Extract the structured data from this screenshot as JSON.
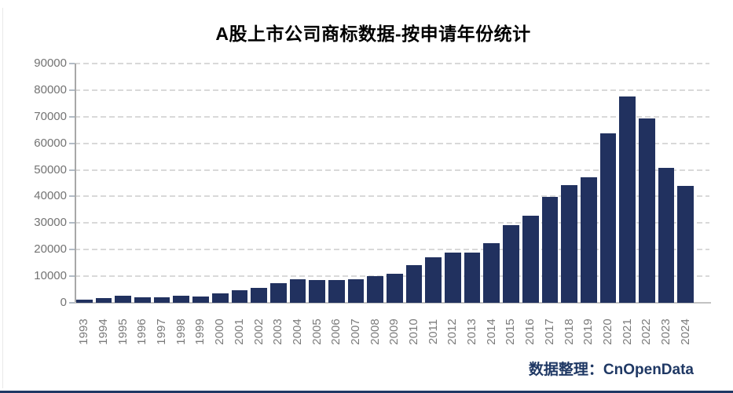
{
  "title": "A股上市公司商标数据-按申请年份统计",
  "footer": {
    "credit": "数据整理：CnOpenData"
  },
  "colors": {
    "bar": "#21315f",
    "gridline": "#d9d9d9",
    "axis": "#a8a8a8",
    "tick_label": "#737373",
    "title": "#000000",
    "footer_accent": "#1f3864"
  },
  "chart_data": {
    "type": "bar",
    "title": "A股上市公司商标数据-按申请年份统计",
    "categories": [
      "1993",
      "1994",
      "1995",
      "1996",
      "1997",
      "1998",
      "1999",
      "2000",
      "2001",
      "2002",
      "2003",
      "2004",
      "2005",
      "2006",
      "2007",
      "2008",
      "2009",
      "2010",
      "2011",
      "2012",
      "2013",
      "2014",
      "2015",
      "2016",
      "2017",
      "2018",
      "2019",
      "2020",
      "2021",
      "2022",
      "2023",
      "2024"
    ],
    "values": [
      1100,
      1900,
      2600,
      2100,
      2000,
      2800,
      2400,
      3600,
      4800,
      5600,
      7500,
      8800,
      8500,
      8600,
      9000,
      10100,
      10900,
      14300,
      17200,
      19000,
      19000,
      22300,
      29200,
      32800,
      39700,
      44400,
      47200,
      63700,
      77500,
      69300,
      50900,
      44100
    ],
    "xlabel": "",
    "ylabel": "",
    "ylim": [
      0,
      90000
    ],
    "ytick_step": 10000,
    "ytick_labels": [
      "0",
      "10000",
      "20000",
      "30000",
      "40000",
      "50000",
      "60000",
      "70000",
      "80000",
      "90000"
    ],
    "grid": "horizontal-dashed",
    "legend": "none",
    "annotation": "数据整理：CnOpenData"
  }
}
